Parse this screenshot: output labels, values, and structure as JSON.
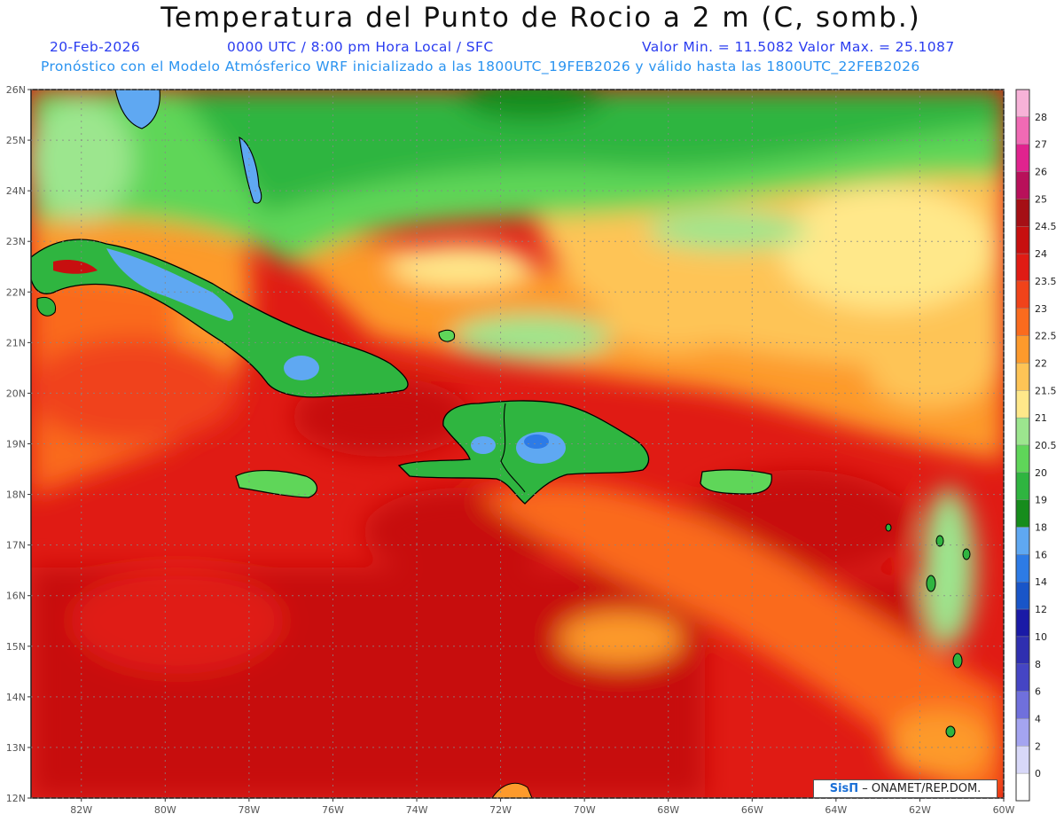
{
  "header": {
    "title": "Temperatura del Punto de Rocio a 2 m (C, somb.)",
    "date": "20-Feb-2026",
    "time_info": "0000 UTC / 8:00 pm Hora Local / SFC",
    "range_info": "Valor Min. = 11.5082  Valor Max. = 25.1087",
    "model_info": "Pronóstico con el Modelo Atmósferico WRF inicializado a las 1800UTC_19FEB2026 y válido hasta las  1800UTC_22FEB2026"
  },
  "map": {
    "lat_labels": [
      "26N",
      "25N",
      "24N",
      "23N",
      "22N",
      "21N",
      "20N",
      "19N",
      "18N",
      "17N",
      "16N",
      "15N",
      "14N",
      "13N",
      "12N"
    ],
    "lon_labels": [
      "82W",
      "80W",
      "78W",
      "76W",
      "74W",
      "72W",
      "70W",
      "68W",
      "66W",
      "64W",
      "62W",
      "60W"
    ],
    "lat_range": [
      12,
      26
    ],
    "lon_range": [
      -83.2,
      -60
    ],
    "grid": true
  },
  "legend": {
    "levels": [
      {
        "label": "28",
        "color": "#f7b2d8"
      },
      {
        "label": "27",
        "color": "#f06ab4"
      },
      {
        "label": "26",
        "color": "#e0238e"
      },
      {
        "label": "25",
        "color": "#b8105a"
      },
      {
        "label": "24.5",
        "color": "#a50f15"
      },
      {
        "label": "24",
        "color": "#c70f0f"
      },
      {
        "label": "23.5",
        "color": "#e01b14"
      },
      {
        "label": "23",
        "color": "#f0431a"
      },
      {
        "label": "22.5",
        "color": "#fa6b1e"
      },
      {
        "label": "22",
        "color": "#fd9a2c"
      },
      {
        "label": "21.5",
        "color": "#fec456"
      },
      {
        "label": "21",
        "color": "#ffe88a"
      },
      {
        "label": "20.5",
        "color": "#9ce68e"
      },
      {
        "label": "20",
        "color": "#5fd659"
      },
      {
        "label": "19",
        "color": "#2fb540"
      },
      {
        "label": "18",
        "color": "#168c1c"
      },
      {
        "label": "16",
        "color": "#5fa8f2"
      },
      {
        "label": "14",
        "color": "#2d7be6"
      },
      {
        "label": "12",
        "color": "#1955c8"
      },
      {
        "label": "10",
        "color": "#1a1aa6"
      },
      {
        "label": "8",
        "color": "#2f2fb0"
      },
      {
        "label": "6",
        "color": "#4545c4"
      },
      {
        "label": "4",
        "color": "#7070dc"
      },
      {
        "label": "2",
        "color": "#a4a4f0"
      },
      {
        "label": "0",
        "color": "#d8d8f8"
      },
      {
        "label": "",
        "color": "#ffffff"
      }
    ]
  },
  "credit": {
    "brand": "SisΠ",
    "org": " – ONAMET/REP.DOM."
  }
}
